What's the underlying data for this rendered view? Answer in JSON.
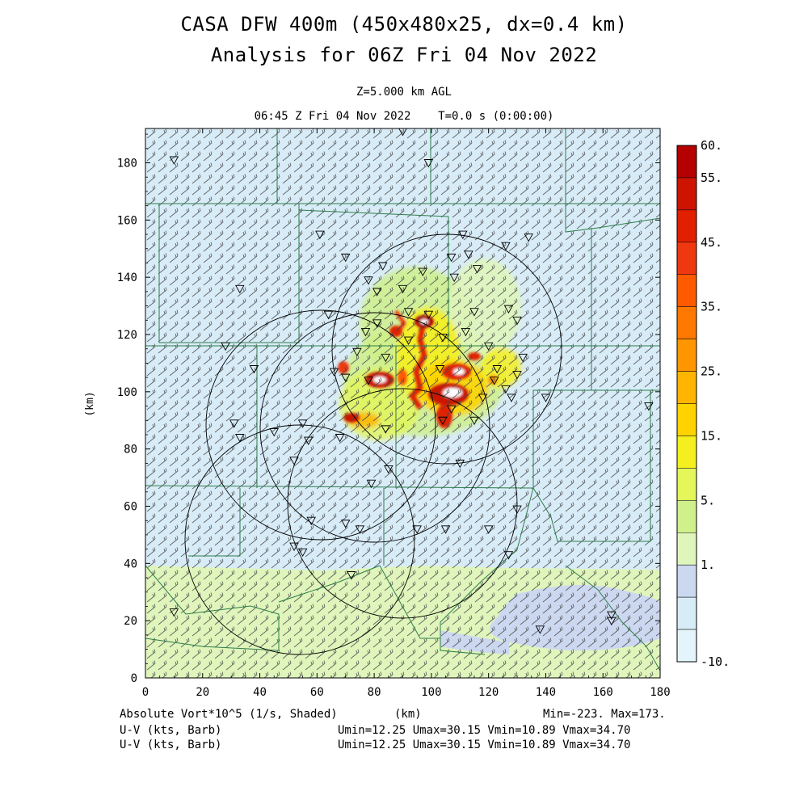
{
  "header": {
    "title_line1": "CASA DFW 400m (450x480x25, dx=0.4 km)",
    "title_line2": "Analysis for 06Z Fri 04 Nov 2022",
    "level": "Z=5.000 km AGL",
    "time": "06:45 Z Fri 04 Nov 2022    T=0.0 s (0:00:00)"
  },
  "footer": {
    "field1": "Absolute Vort*10^5 (1/s, Shaded)",
    "field2": "U-V (kts, Barb)",
    "field3": "U-V (kts, Barb)",
    "xunit": "(km)",
    "minmax": "Min=-223. Max=173.",
    "uv1": "Umin=12.25 Umax=30.15 Vmin=10.89 Vmax=34.70",
    "uv2": "Umin=12.25 Umax=30.15 Vmin=10.89 Vmax=34.70"
  },
  "chart_data": {
    "type": "heatmap",
    "title": "CASA DFW 400m (450x480x25, dx=0.4 km) Analysis for 06Z Fri 04 Nov 2022",
    "xlabel": "(km)",
    "ylabel": "(km)",
    "xlim": [
      0,
      180
    ],
    "ylim": [
      0,
      192
    ],
    "x_ticks": [
      0,
      20,
      40,
      60,
      80,
      100,
      120,
      140,
      160,
      180
    ],
    "y_ticks": [
      0,
      20,
      40,
      60,
      80,
      100,
      120,
      140,
      160,
      180
    ],
    "colorbar": {
      "labels": [
        "60.",
        "55.",
        "45.",
        "35.",
        "25.",
        "15.",
        "5.",
        "1.",
        "-10."
      ],
      "colors": [
        "#b50000",
        "#cc1400",
        "#e02000",
        "#f03810",
        "#ff5a00",
        "#ff7800",
        "#ff9600",
        "#ffb400",
        "#ffd200",
        "#f5ef20",
        "#e4f65a",
        "#cff08a",
        "#dff5bb",
        "#ccd8f0",
        "#d8ecf8",
        "#e4f4fb"
      ],
      "position": "right"
    },
    "colors": {
      "background_field": "#d8ecf8",
      "south_field": "#dff5bb",
      "southeast_field": "#ccd8f0",
      "county_lines": "#2e7d4a",
      "barbs": "#4a4a4a"
    },
    "features": {
      "radar_range_rings": [
        {
          "center": [
            101,
            115.5
          ],
          "radius_km": 40
        },
        {
          "center": [
            80,
            89
          ],
          "radius_km": 40
        },
        {
          "center": [
            109,
            77
          ],
          "radius_km": 40
        },
        {
          "center": [
            50,
            47
          ],
          "radius_km": 40
        },
        {
          "center": [
            73,
            62
          ],
          "radius_km": 40
        }
      ],
      "vorticity_max_region_center": [
        100,
        105
      ]
    }
  }
}
